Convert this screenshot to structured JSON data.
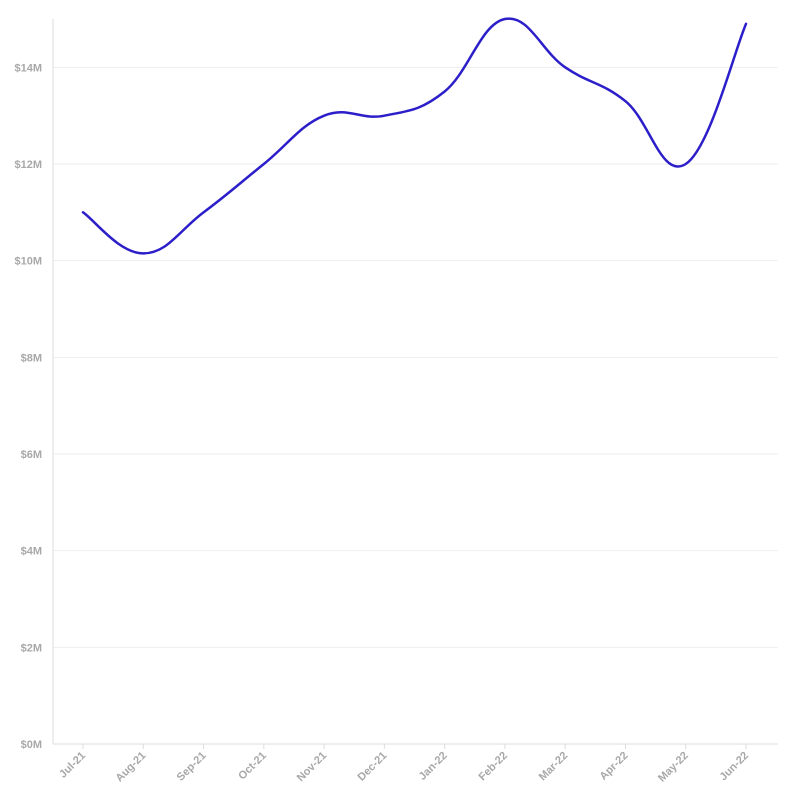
{
  "chart_data": {
    "type": "line",
    "title": "",
    "xlabel": "",
    "ylabel": "",
    "categories": [
      "Jul-21",
      "Aug-21",
      "Sep-21",
      "Oct-21",
      "Nov-21",
      "Dec-21",
      "Jan-22",
      "Feb-22",
      "Mar-22",
      "Apr-22",
      "May-22",
      "Jun-22"
    ],
    "series": [
      {
        "color": "#2c1fc9",
        "values": [
          11.0,
          10.15,
          11.0,
          12.0,
          13.0,
          13.0,
          13.5,
          15.0,
          14.0,
          13.3,
          12.0,
          14.9
        ]
      }
    ],
    "ylim": [
      0,
      15
    ],
    "y_ticks": [
      {
        "value": 0,
        "label": "$0M"
      },
      {
        "value": 2,
        "label": "$2M"
      },
      {
        "value": 4,
        "label": "$4M"
      },
      {
        "value": 6,
        "label": "$6M"
      },
      {
        "value": 8,
        "label": "$8M"
      },
      {
        "value": 10,
        "label": "$10M"
      },
      {
        "value": 12,
        "label": "$12M"
      },
      {
        "value": 14,
        "label": "$14M"
      }
    ],
    "grid": true,
    "legend": "none"
  }
}
